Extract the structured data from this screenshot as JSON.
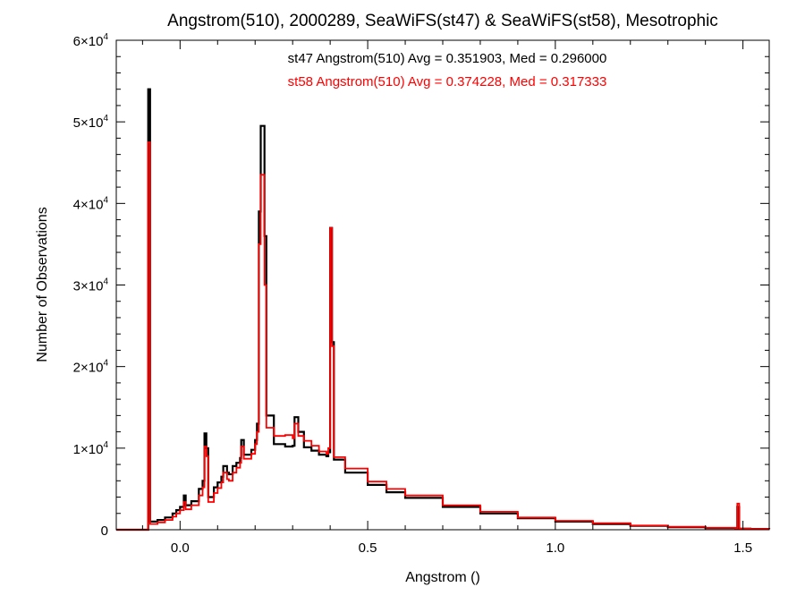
{
  "chart_data": {
    "type": "line",
    "title": "Angstrom(510), 2000289, SeaWiFS(st47) & SeaWiFS(st58), Mesotrophic",
    "xlabel": "Angstrom ()",
    "ylabel": "Number of Observations",
    "xlim": [
      -0.17,
      1.57
    ],
    "ylim": [
      0,
      60000
    ],
    "x_ticks": [
      {
        "value": 0.0,
        "label": "0.0"
      },
      {
        "value": 0.5,
        "label": "0.5"
      },
      {
        "value": 1.0,
        "label": "1.0"
      },
      {
        "value": 1.5,
        "label": "1.5"
      }
    ],
    "y_ticks": [
      {
        "value": 0,
        "mant": "0",
        "exp": ""
      },
      {
        "value": 10000,
        "mant": "1×10",
        "exp": "4"
      },
      {
        "value": 20000,
        "mant": "2×10",
        "exp": "4"
      },
      {
        "value": 30000,
        "mant": "3×10",
        "exp": "4"
      },
      {
        "value": 40000,
        "mant": "4×10",
        "exp": "4"
      },
      {
        "value": 50000,
        "mant": "5×10",
        "exp": "4"
      },
      {
        "value": 60000,
        "mant": "6×10",
        "exp": "4"
      }
    ],
    "grid": false,
    "step": true,
    "annotations": [
      {
        "text": "st47 Angstrom(510) Avg = 0.351903, Med = 0.296000",
        "color": "#000000"
      },
      {
        "text": "st58 Angstrom(510) Avg = 0.374228, Med = 0.317333",
        "color": "#ff0000"
      }
    ],
    "series": [
      {
        "color": "#000000",
        "points": [
          [
            -0.17,
            0
          ],
          [
            -0.09,
            0
          ],
          [
            -0.085,
            54000
          ],
          [
            -0.08,
            1000
          ],
          [
            -0.06,
            1200
          ],
          [
            -0.04,
            1500
          ],
          [
            -0.02,
            2000
          ],
          [
            -0.01,
            2400
          ],
          [
            0.0,
            2800
          ],
          [
            0.01,
            4200
          ],
          [
            0.015,
            3000
          ],
          [
            0.03,
            3500
          ],
          [
            0.05,
            5000
          ],
          [
            0.06,
            6000
          ],
          [
            0.065,
            11800
          ],
          [
            0.07,
            10000
          ],
          [
            0.075,
            4000
          ],
          [
            0.09,
            5200
          ],
          [
            0.1,
            5800
          ],
          [
            0.11,
            6500
          ],
          [
            0.115,
            7800
          ],
          [
            0.125,
            7000
          ],
          [
            0.13,
            6800
          ],
          [
            0.14,
            7800
          ],
          [
            0.15,
            8200
          ],
          [
            0.16,
            8800
          ],
          [
            0.163,
            11000
          ],
          [
            0.17,
            9200
          ],
          [
            0.19,
            9800
          ],
          [
            0.2,
            11000
          ],
          [
            0.205,
            13000
          ],
          [
            0.21,
            39000
          ],
          [
            0.215,
            49500
          ],
          [
            0.225,
            36000
          ],
          [
            0.23,
            14000
          ],
          [
            0.25,
            10500
          ],
          [
            0.28,
            10200
          ],
          [
            0.3,
            10300
          ],
          [
            0.305,
            13800
          ],
          [
            0.315,
            12000
          ],
          [
            0.33,
            10100
          ],
          [
            0.35,
            9700
          ],
          [
            0.37,
            9200
          ],
          [
            0.39,
            9000
          ],
          [
            0.395,
            9500
          ],
          [
            0.4,
            37000
          ],
          [
            0.405,
            23000
          ],
          [
            0.41,
            8600
          ],
          [
            0.44,
            7000
          ],
          [
            0.5,
            5500
          ],
          [
            0.55,
            4600
          ],
          [
            0.6,
            3900
          ],
          [
            0.7,
            2800
          ],
          [
            0.8,
            2000
          ],
          [
            0.9,
            1400
          ],
          [
            1.0,
            1000
          ],
          [
            1.1,
            700
          ],
          [
            1.2,
            480
          ],
          [
            1.3,
            320
          ],
          [
            1.4,
            210
          ],
          [
            1.48,
            150
          ],
          [
            1.485,
            2800
          ],
          [
            1.49,
            120
          ],
          [
            1.52,
            100
          ],
          [
            1.57,
            90
          ]
        ]
      },
      {
        "color": "#ff0000",
        "points": [
          [
            -0.17,
            0
          ],
          [
            -0.09,
            0
          ],
          [
            -0.085,
            47500
          ],
          [
            -0.08,
            700
          ],
          [
            -0.06,
            900
          ],
          [
            -0.04,
            1200
          ],
          [
            -0.02,
            1600
          ],
          [
            -0.01,
            2000
          ],
          [
            0.0,
            2400
          ],
          [
            0.01,
            3400
          ],
          [
            0.015,
            2500
          ],
          [
            0.03,
            3000
          ],
          [
            0.05,
            4200
          ],
          [
            0.06,
            5200
          ],
          [
            0.065,
            10200
          ],
          [
            0.07,
            9000
          ],
          [
            0.075,
            3400
          ],
          [
            0.09,
            4500
          ],
          [
            0.1,
            5100
          ],
          [
            0.11,
            5800
          ],
          [
            0.115,
            7000
          ],
          [
            0.125,
            6200
          ],
          [
            0.13,
            6000
          ],
          [
            0.14,
            7000
          ],
          [
            0.15,
            7600
          ],
          [
            0.16,
            8200
          ],
          [
            0.163,
            10200
          ],
          [
            0.17,
            8700
          ],
          [
            0.19,
            9300
          ],
          [
            0.2,
            10500
          ],
          [
            0.205,
            12000
          ],
          [
            0.21,
            35000
          ],
          [
            0.215,
            43500
          ],
          [
            0.225,
            30000
          ],
          [
            0.23,
            12500
          ],
          [
            0.25,
            11500
          ],
          [
            0.28,
            11600
          ],
          [
            0.3,
            11200
          ],
          [
            0.305,
            13000
          ],
          [
            0.315,
            11500
          ],
          [
            0.33,
            10900
          ],
          [
            0.35,
            10300
          ],
          [
            0.37,
            9600
          ],
          [
            0.39,
            9300
          ],
          [
            0.395,
            10000
          ],
          [
            0.4,
            37000
          ],
          [
            0.405,
            22500
          ],
          [
            0.41,
            8900
          ],
          [
            0.44,
            7500
          ],
          [
            0.5,
            5900
          ],
          [
            0.55,
            5000
          ],
          [
            0.6,
            4200
          ],
          [
            0.7,
            3000
          ],
          [
            0.8,
            2200
          ],
          [
            0.9,
            1500
          ],
          [
            1.0,
            1100
          ],
          [
            1.1,
            800
          ],
          [
            1.2,
            520
          ],
          [
            1.3,
            360
          ],
          [
            1.4,
            240
          ],
          [
            1.48,
            170
          ],
          [
            1.485,
            3200
          ],
          [
            1.49,
            140
          ],
          [
            1.52,
            110
          ],
          [
            1.57,
            100
          ]
        ]
      }
    ]
  }
}
